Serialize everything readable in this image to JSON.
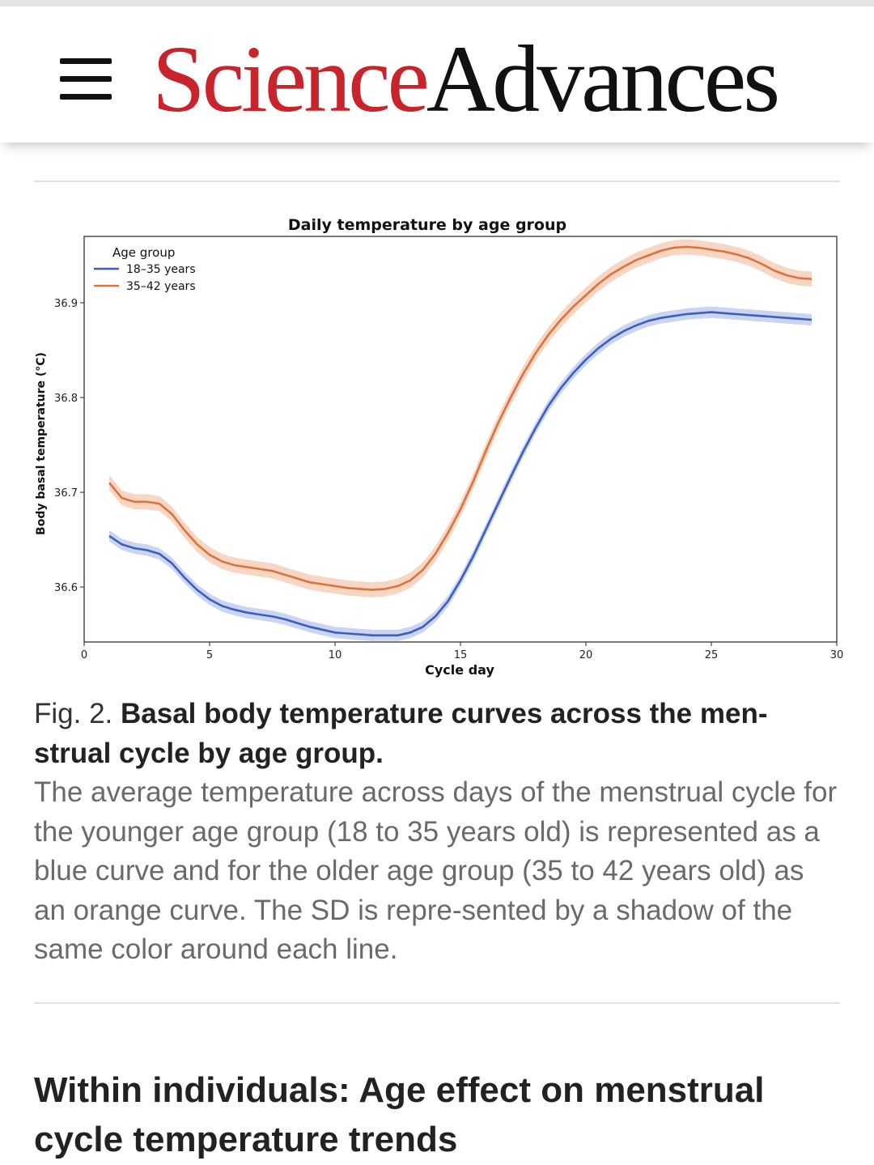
{
  "header": {
    "logo_part1": "Science",
    "logo_part2": "Advances",
    "menu_icon": "hamburger-menu-icon"
  },
  "figure": {
    "label": "Fig. 2.",
    "title": "Basal body temperature curves across the men-strual cycle by age group.",
    "caption": "The average temperature across days of the menstrual cycle for the younger age group (18 to 35 years old) is represented as a blue curve and for the older age group (35 to 42 years old) as an orange curve. The SD is repre-sented by a shadow of the same color around each line."
  },
  "section": {
    "heading": "Within individuals: Age effect on menstrual cycle temperature trends"
  },
  "colors": {
    "brand_red": "#c8242c",
    "series_blue": "#3b5fc0",
    "series_orange": "#d9743f"
  },
  "chart_data": {
    "type": "line",
    "title": "Daily temperature by age group",
    "xlabel": "Cycle day",
    "ylabel": "Body basal temperature (°C)",
    "xlim": [
      0,
      30
    ],
    "ylim": [
      36.542,
      36.97
    ],
    "xticks": [
      0,
      5,
      10,
      15,
      20,
      25,
      30
    ],
    "yticks": [
      36.6,
      36.7,
      36.8,
      36.9
    ],
    "grid": false,
    "legend": {
      "title": "Age group",
      "placement": "top-left"
    },
    "x": [
      1,
      1.5,
      2,
      2.5,
      3,
      3.5,
      4,
      4.5,
      5,
      5.5,
      6,
      6.5,
      7,
      7.5,
      8,
      8.5,
      9,
      9.5,
      10,
      10.5,
      11,
      11.5,
      12,
      12.5,
      13,
      13.5,
      14,
      14.5,
      15,
      15.5,
      16,
      16.5,
      17,
      17.5,
      18,
      18.5,
      19,
      19.5,
      20,
      20.5,
      21,
      21.5,
      22,
      22.5,
      23,
      23.5,
      24,
      24.5,
      25,
      25.5,
      26,
      26.5,
      27,
      27.5,
      28,
      28.5,
      29
    ],
    "series": [
      {
        "name": "18–35 years",
        "color": "#3b5fc0",
        "band_color": "#b9c7ec",
        "sd": 0.006,
        "values": [
          36.654,
          36.645,
          36.641,
          36.639,
          36.635,
          36.625,
          36.61,
          36.597,
          36.587,
          36.58,
          36.576,
          36.573,
          36.571,
          36.569,
          36.566,
          36.562,
          36.558,
          36.555,
          36.552,
          36.551,
          36.55,
          36.549,
          36.549,
          36.549,
          36.552,
          36.558,
          36.569,
          36.585,
          36.607,
          36.632,
          36.66,
          36.688,
          36.716,
          36.743,
          36.768,
          36.791,
          36.81,
          36.826,
          36.84,
          36.852,
          36.862,
          36.87,
          36.876,
          36.881,
          36.884,
          36.886,
          36.888,
          36.889,
          36.89,
          36.889,
          36.888,
          36.887,
          36.886,
          36.885,
          36.884,
          36.883,
          36.882
        ]
      },
      {
        "name": "35–42 years",
        "color": "#d9743f",
        "band_color": "#f4c8b0",
        "sd": 0.008,
        "values": [
          36.71,
          36.694,
          36.69,
          36.69,
          36.688,
          36.677,
          36.66,
          36.645,
          36.634,
          36.627,
          36.623,
          36.621,
          36.619,
          36.617,
          36.613,
          36.609,
          36.605,
          36.603,
          36.601,
          36.599,
          36.598,
          36.597,
          36.598,
          36.601,
          36.607,
          36.618,
          36.635,
          36.657,
          36.682,
          36.711,
          36.743,
          36.773,
          36.8,
          36.825,
          36.847,
          36.866,
          36.882,
          36.896,
          36.908,
          36.92,
          36.93,
          36.938,
          36.945,
          36.95,
          36.955,
          36.958,
          36.959,
          36.958,
          36.956,
          36.954,
          36.951,
          36.947,
          36.941,
          36.934,
          36.929,
          36.926,
          36.925
        ]
      }
    ]
  }
}
